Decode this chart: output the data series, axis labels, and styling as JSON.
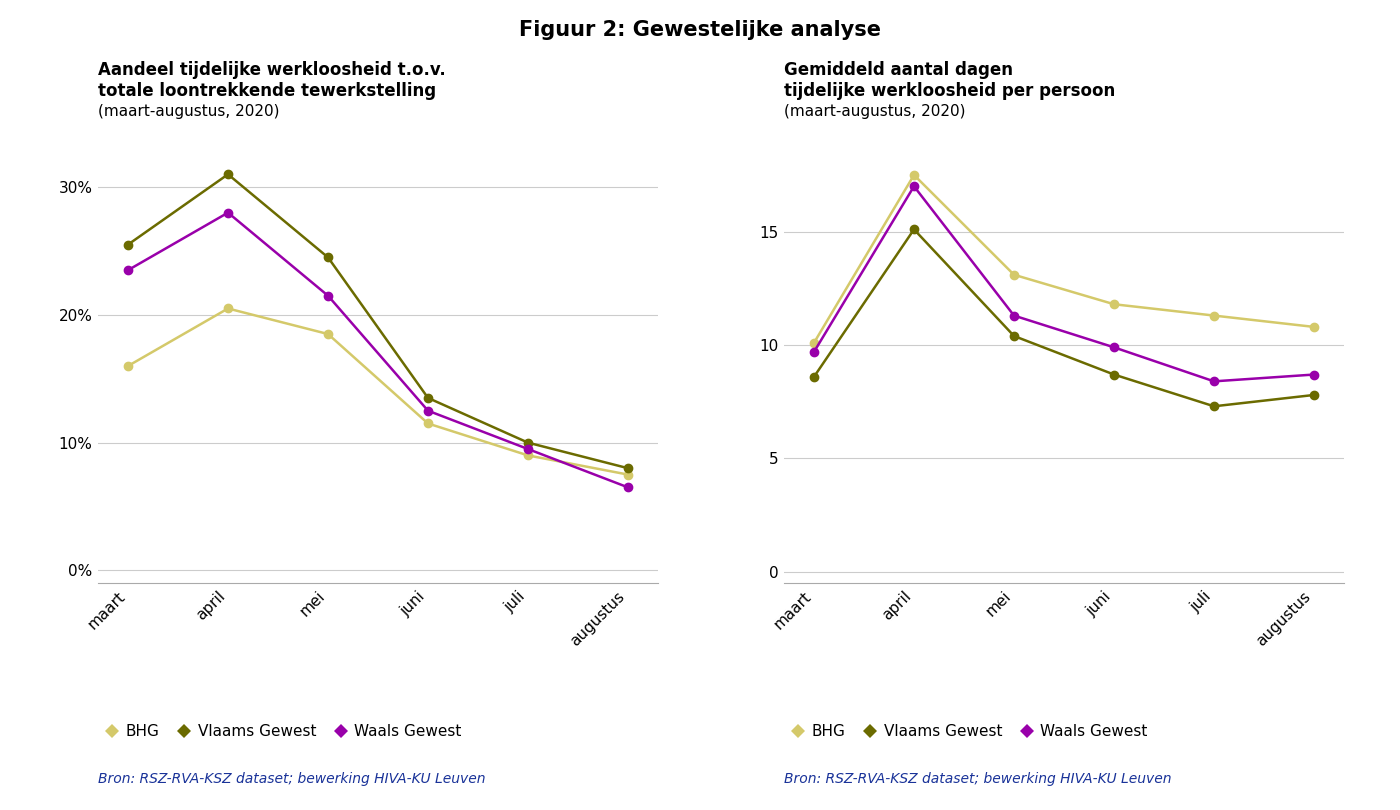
{
  "title": "Figuur 2: Gewestelijke analyse",
  "months": [
    "maart",
    "april",
    "mei",
    "juni",
    "juli",
    "augustus"
  ],
  "left_chart": {
    "title_line1": "Aandeel tijdelijke werkloosheid t.o.v.",
    "title_line2": "totale loontrekkende tewerkstelling",
    "subtitle": "(maart-augustus, 2020)",
    "BHG": [
      0.16,
      0.205,
      0.185,
      0.115,
      0.09,
      0.075
    ],
    "Vlaams": [
      0.255,
      0.31,
      0.245,
      0.135,
      0.1,
      0.08
    ],
    "Waals": [
      0.235,
      0.28,
      0.215,
      0.125,
      0.095,
      0.065
    ],
    "yticks": [
      0.0,
      0.1,
      0.2,
      0.3
    ],
    "ytick_labels": [
      "0%",
      "10%",
      "20%",
      "30%"
    ],
    "ylim": [
      -0.01,
      0.345
    ]
  },
  "right_chart": {
    "title_line1": "Gemiddeld aantal dagen",
    "title_line2": "tijdelijke werkloosheid per persoon",
    "subtitle": "(maart-augustus, 2020)",
    "BHG": [
      10.1,
      17.5,
      13.1,
      11.8,
      11.3,
      10.8
    ],
    "Vlaams": [
      8.6,
      15.1,
      10.4,
      8.7,
      7.3,
      7.8
    ],
    "Waals": [
      9.7,
      17.0,
      11.3,
      9.9,
      8.4,
      8.7
    ],
    "yticks": [
      0,
      5,
      10,
      15
    ],
    "ylim": [
      -0.5,
      19.5
    ]
  },
  "colors": {
    "BHG": "#d4c96a",
    "Vlaams": "#6b6b00",
    "Waals": "#9900aa"
  },
  "legend_labels": [
    "BHG",
    "Vlaams Gewest",
    "Waals Gewest"
  ],
  "source_text": "Bron: RSZ-RVA-KSZ dataset; bewerking HIVA-KU Leuven",
  "bg_color": "#ffffff",
  "grid_color": "#cccccc",
  "markersize": 6,
  "linewidth": 1.8
}
